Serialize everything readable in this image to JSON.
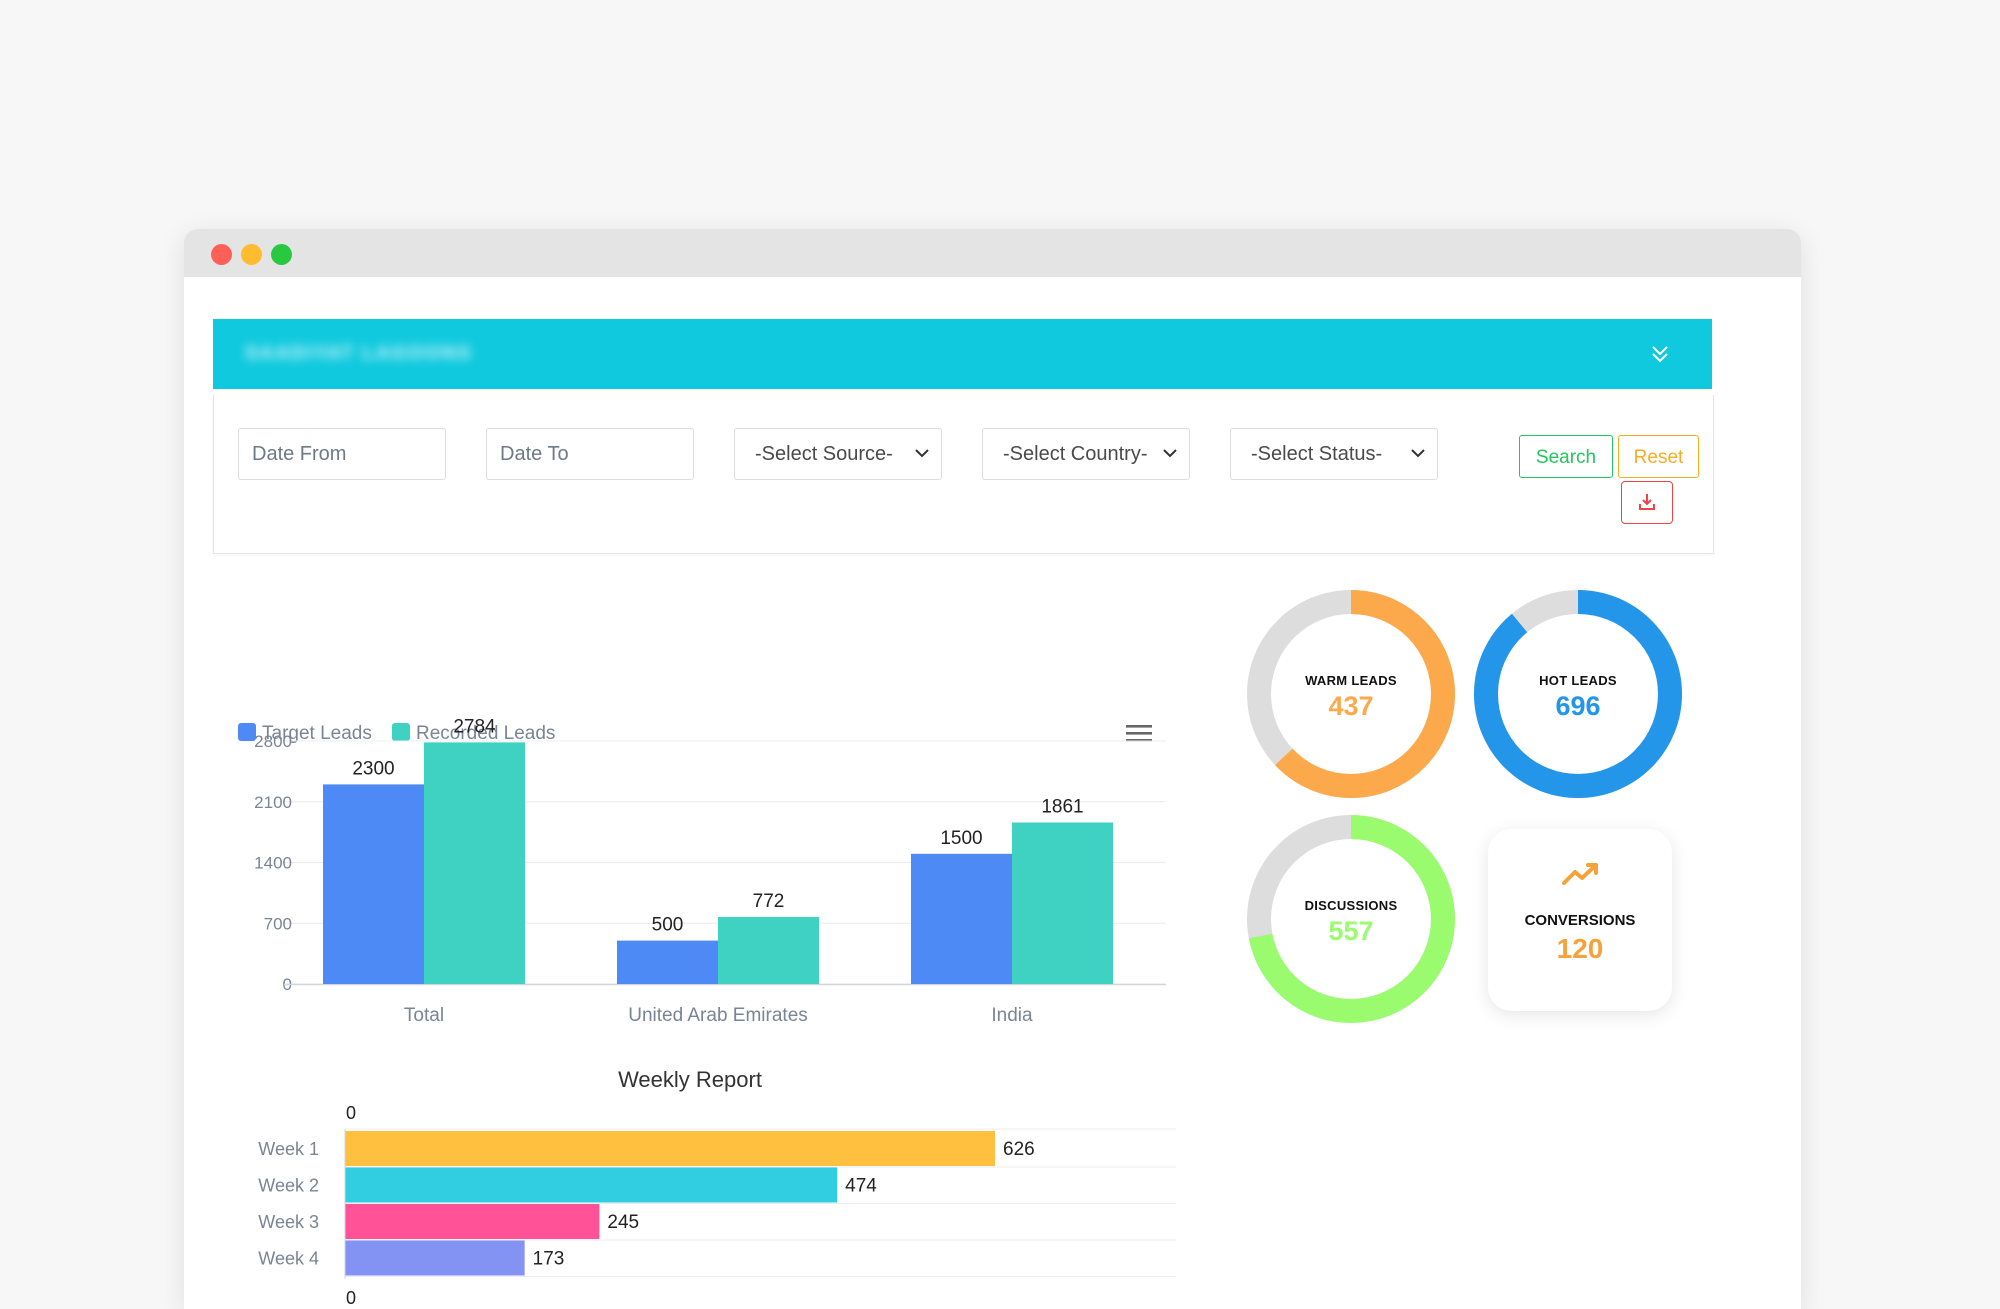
{
  "window": {
    "controls": [
      "close",
      "minimize",
      "maximize"
    ]
  },
  "project": {
    "name": "SAADIYAT LAGOONS",
    "collapse_icon": "double-chevron-down-icon"
  },
  "filters": {
    "date_from_placeholder": "Date From",
    "date_to_placeholder": "Date To",
    "source_select": "-Select Source-",
    "country_select": "-Select Country-",
    "status_select": "-Select Status-",
    "search_label": "Search",
    "reset_label": "Reset",
    "download_icon": "download-icon"
  },
  "colors": {
    "header": "#10c9de",
    "target": "#4e8af5",
    "recorded": "#3fd1c2",
    "warm": "#fba94a",
    "hot": "#2496ea",
    "discussions": "#9bfb6e",
    "conversions": "#f6a23a",
    "track": "#dddddd"
  },
  "leads_chart": {
    "menu_icon": "hamburger-menu-icon"
  },
  "weekly_chart": {},
  "stats": {
    "warm": {
      "label": "WARM LEADS",
      "value": "437",
      "fraction": 0.63
    },
    "hot": {
      "label": "HOT LEADS",
      "value": "696",
      "fraction": 0.89
    },
    "discussions": {
      "label": "DISCUSSIONS",
      "value": "557",
      "fraction": 0.72
    },
    "conversions": {
      "label": "CONVERSIONS",
      "value": "120",
      "icon": "trending-up-icon"
    }
  },
  "chart_data": [
    {
      "type": "bar",
      "categories": [
        "Total",
        "United Arab Emirates",
        "India"
      ],
      "series": [
        {
          "name": "Target Leads",
          "values": [
            2300,
            500,
            1500
          ]
        },
        {
          "name": "Recorded Leads",
          "values": [
            2784,
            772,
            1861
          ]
        }
      ],
      "yticks": [
        "0",
        "700",
        "1400",
        "2100",
        "2800"
      ],
      "ylim": [
        0,
        2800
      ],
      "legend": "top-left",
      "grid": true
    },
    {
      "type": "bar",
      "orientation": "horizontal",
      "title": "Weekly Report",
      "categories": [
        "Week 1",
        "Week 2",
        "Week 3",
        "Week 4"
      ],
      "values": [
        626,
        474,
        245,
        173
      ],
      "colors": [
        "#ffc03f",
        "#31cde0",
        "#ff5297",
        "#8393f3"
      ],
      "axis_labels": [
        "0",
        "0"
      ],
      "grid": true
    }
  ]
}
